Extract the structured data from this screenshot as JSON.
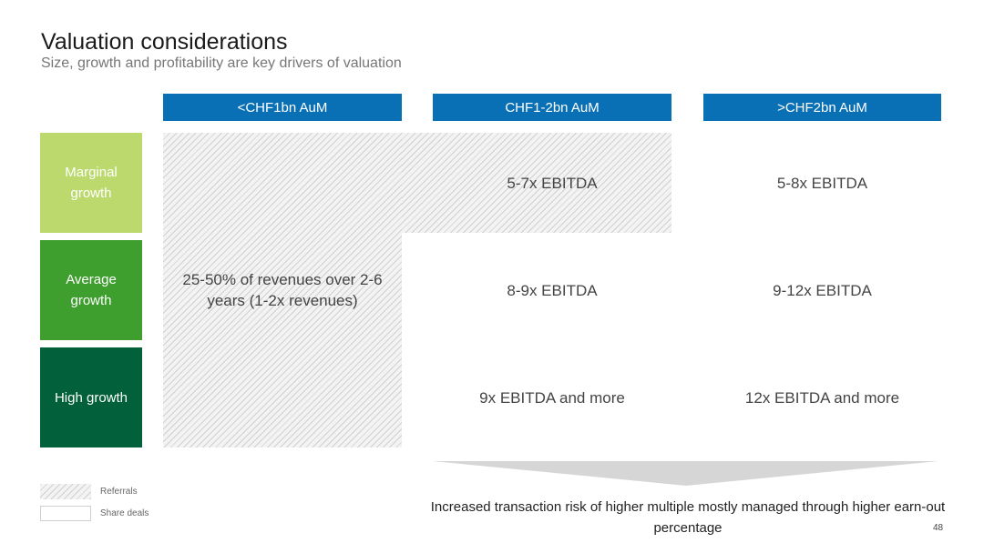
{
  "slide": {
    "title": "Valuation considerations",
    "subtitle": "Size, growth and profitability are key drivers of valuation",
    "page_number": "48"
  },
  "columns": [
    "<CHF1bn AuM",
    "CHF1-2bn AuM",
    ">CHF2bn AuM"
  ],
  "rows": [
    {
      "label": "Marginal growth",
      "color": "#bcd96e"
    },
    {
      "label": "Average growth",
      "color": "#3e9e2e"
    },
    {
      "label": "High growth",
      "color": "#02613a"
    }
  ],
  "cells": {
    "small_all": "25-50% of revenues over 2-6 years (1-2x revenues)",
    "mid_marginal": "5-7x EBITDA",
    "large_marginal": "5-8x EBITDA",
    "mid_average": "8-9x EBITDA",
    "large_average": "9-12x EBITDA",
    "mid_high": "9x EBITDA and more",
    "large_high": "12x EBITDA and more"
  },
  "legend": {
    "referrals": "Referrals",
    "share_deals": "Share deals"
  },
  "note": "Increased transaction risk of higher multiple mostly managed through higher earn-out percentage",
  "colors": {
    "header_blue": "#0a70b5",
    "marginal_green": "#bcd96e",
    "average_green": "#3e9e2e",
    "high_green": "#02613a",
    "arrow_grey": "#d6d6d6"
  }
}
